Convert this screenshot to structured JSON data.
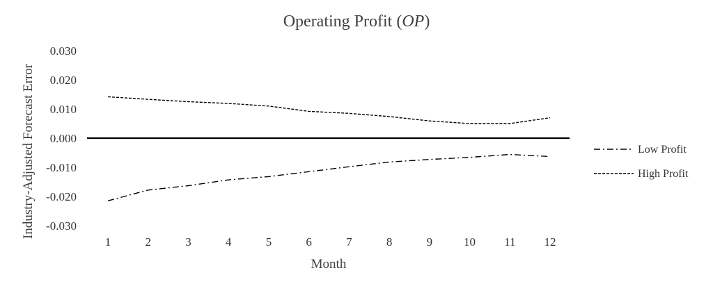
{
  "chart_data": {
    "type": "line",
    "title_main": "Operating Profit (",
    "title_italic": "OP",
    "title_end": ")",
    "xlabel": "Month",
    "ylabel": "Industry-Adjusted Forecast Error",
    "ylim": [
      -0.03,
      0.03
    ],
    "y_ticks": [
      "0.030",
      "0.020",
      "0.010",
      "0.000",
      "-0.010",
      "-0.020",
      "-0.030"
    ],
    "y_tick_values": [
      0.03,
      0.02,
      0.01,
      0.0,
      -0.01,
      -0.02,
      -0.03
    ],
    "x": [
      "1",
      "2",
      "3",
      "4",
      "5",
      "6",
      "7",
      "8",
      "9",
      "10",
      "11",
      "12"
    ],
    "zero_line": true,
    "grid": false,
    "legend_position": "right",
    "series": [
      {
        "name": "Low Profit",
        "style": "dash-dot",
        "color": "#000000",
        "values": [
          -0.0215,
          -0.0178,
          -0.0163,
          -0.0143,
          -0.0132,
          -0.0115,
          -0.0098,
          -0.0082,
          -0.0073,
          -0.0066,
          -0.0056,
          -0.0063
        ]
      },
      {
        "name": "High Profit",
        "style": "dashed",
        "color": "#000000",
        "values": [
          0.0142,
          0.0133,
          0.0125,
          0.0119,
          0.011,
          0.0092,
          0.0085,
          0.0074,
          0.0059,
          0.005,
          0.005,
          0.007
        ]
      }
    ]
  }
}
